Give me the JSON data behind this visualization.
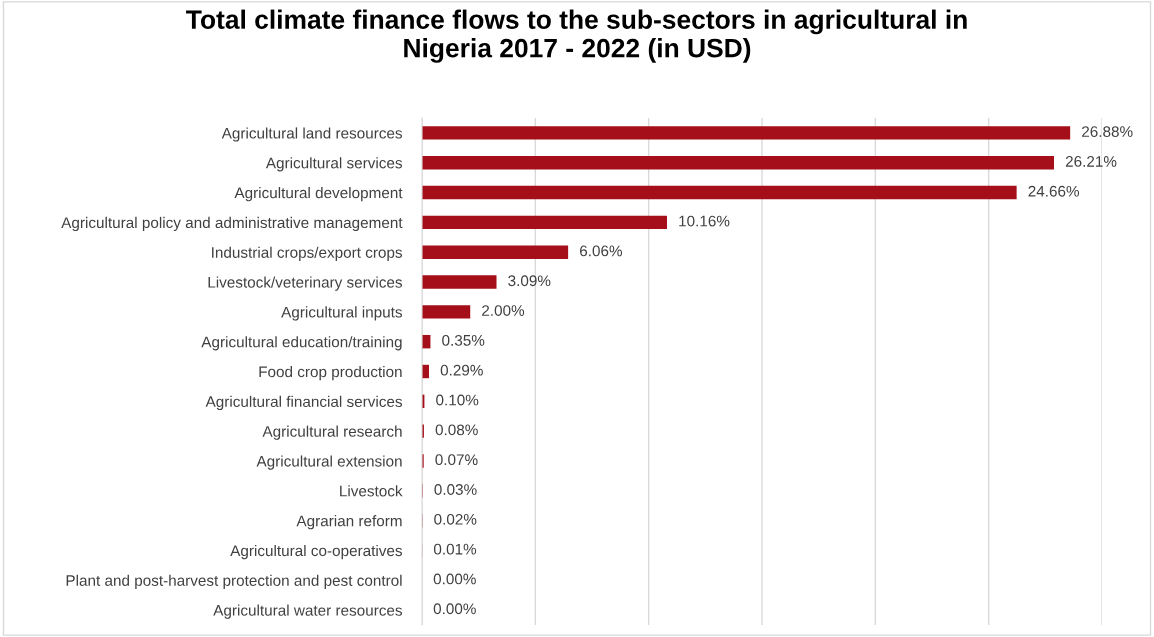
{
  "chart_data": {
    "type": "bar",
    "orientation": "horizontal",
    "title": "Total climate finance flows to the sub-sectors in agricultural in\nNigeria 2017 - 2022 (in USD)",
    "categories": [
      "Agricultural land resources",
      "Agricultural services",
      "Agricultural development",
      "Agricultural policy and administrative management",
      "Industrial crops/export crops",
      "Livestock/veterinary services",
      "Agricultural inputs",
      "Agricultural education/training",
      "Food crop production",
      "Agricultural financial services",
      "Agricultural research",
      "Agricultural extension",
      "Livestock",
      "Agrarian reform",
      "Agricultural co-operatives",
      "Plant and post-harvest protection and pest control",
      "Agricultural water resources"
    ],
    "values": [
      26.88,
      26.21,
      24.66,
      10.16,
      6.06,
      3.09,
      2.0,
      0.35,
      0.29,
      0.1,
      0.08,
      0.07,
      0.03,
      0.02,
      0.01,
      0.0,
      0.0
    ],
    "value_labels": [
      "26.88%",
      "26.21%",
      "24.66%",
      "10.16%",
      "6.06%",
      "3.09%",
      "2.00%",
      "0.35%",
      "0.29%",
      "0.10%",
      "0.08%",
      "0.07%",
      "0.03%",
      "0.02%",
      "0.01%",
      "0.00%",
      "0.00%"
    ],
    "color": "#a50f1a",
    "xlim": [
      0,
      28.2
    ],
    "xticks": [
      {
        "value": 0,
        "label": null
      },
      {
        "value": 4.7,
        "label": null
      },
      {
        "value": 9.4,
        "label": null
      },
      {
        "value": 14.1,
        "label": null
      },
      {
        "value": 18.8,
        "label": null
      },
      {
        "value": 23.5,
        "label": null
      },
      {
        "value": 28.2,
        "label": null
      }
    ],
    "tick_labels": "y",
    "grid": "x",
    "legend": false
  }
}
